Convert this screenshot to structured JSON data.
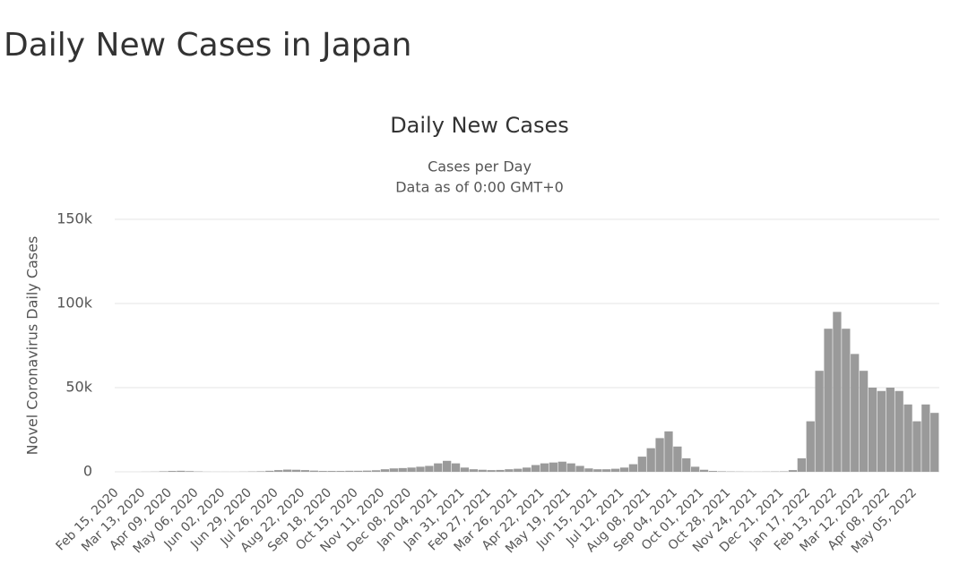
{
  "page_title": "Daily New Cases in Japan",
  "chart_data": {
    "type": "bar",
    "title": "Daily New Cases",
    "subtitle": "Cases per Day",
    "note": "Data as of 0:00 GMT+0",
    "y_label": "Novel Coronavirus Daily Cases",
    "color": "#9a9a9a",
    "grid": true,
    "ylim": [
      0,
      150000
    ],
    "yticks": [
      0,
      {
        "value": 50000,
        "label": "50k"
      },
      {
        "value": 100000,
        "label": "100k"
      },
      {
        "value": 150000,
        "label": "150k"
      }
    ],
    "categories": [
      "Feb 15, 2020",
      null,
      null,
      "Mar 13, 2020",
      null,
      null,
      "Apr 09, 2020",
      null,
      null,
      "May 06, 2020",
      null,
      null,
      "Jun 02, 2020",
      null,
      null,
      "Jun 29, 2020",
      null,
      null,
      "Jul 26, 2020",
      null,
      null,
      "Aug 22, 2020",
      null,
      null,
      "Sep 18, 2020",
      null,
      null,
      "Oct 15, 2020",
      null,
      null,
      "Nov 11, 2020",
      null,
      null,
      "Dec 08, 2020",
      null,
      null,
      "Jan 04, 2021",
      null,
      null,
      "Jan 31, 2021",
      null,
      null,
      "Feb 27, 2021",
      null,
      null,
      "Mar 26, 2021",
      null,
      null,
      "Apr 22, 2021",
      null,
      null,
      "May 19, 2021",
      null,
      null,
      "Jun 15, 2021",
      null,
      null,
      "Jul 12, 2021",
      null,
      null,
      "Aug 08, 2021",
      null,
      null,
      "Sep 04, 2021",
      null,
      null,
      "Oct 01, 2021",
      null,
      null,
      "Oct 28, 2021",
      null,
      null,
      "Nov 24, 2021",
      null,
      null,
      "Dec 21, 2021",
      null,
      null,
      "Jan 17, 2022",
      null,
      null,
      "Feb 13, 2022",
      null,
      null,
      "Mar 12, 2022",
      null,
      null,
      "Apr 08, 2022",
      null,
      null,
      "May 05, 2022",
      null,
      null
    ],
    "values": [
      0,
      0,
      0,
      50,
      100,
      300,
      500,
      600,
      400,
      200,
      60,
      40,
      40,
      50,
      100,
      200,
      300,
      600,
      1000,
      1300,
      1200,
      1000,
      700,
      500,
      500,
      500,
      600,
      600,
      700,
      900,
      1500,
      2000,
      2200,
      2500,
      3000,
      3500,
      5000,
      6500,
      5000,
      2500,
      1500,
      1200,
      1000,
      1100,
      1500,
      1800,
      2500,
      4000,
      5000,
      5500,
      6000,
      5000,
      3500,
      2000,
      1500,
      1500,
      1800,
      2500,
      4500,
      9000,
      14000,
      20000,
      24000,
      15000,
      8000,
      3000,
      1200,
      500,
      300,
      200,
      150,
      100,
      100,
      150,
      200,
      250,
      1000,
      8000,
      30000,
      60000,
      85000,
      95000,
      85000,
      70000,
      60000,
      50000,
      48000,
      50000,
      48000,
      40000,
      30000,
      40000,
      35000
    ]
  }
}
